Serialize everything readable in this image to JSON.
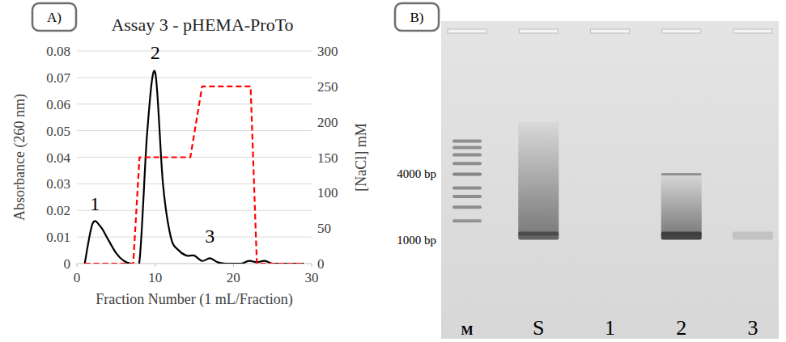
{
  "chart_data": [
    {
      "type": "line",
      "panel": "A)",
      "title": "Assay 3 - pHEMA-ProTo",
      "x_label": "Fraction Number (1 mL/Fraction)",
      "y_label": "Absorbance (260 nm)",
      "y2_label": "[NaCl] mM",
      "xlim": [
        0,
        30
      ],
      "xticks": [
        0,
        10,
        20,
        30
      ],
      "ylim": [
        0,
        0.08
      ],
      "yticks": [
        0,
        0.01,
        0.02,
        0.03,
        0.04,
        0.05,
        0.06,
        0.07,
        0.08
      ],
      "y2lim": [
        0,
        300
      ],
      "y2ticks": [
        0,
        50,
        100,
        150,
        200,
        250,
        300
      ],
      "grid": true,
      "series": [
        {
          "color": "#000000",
          "line_style": "solid",
          "x": [
            1,
            2,
            3,
            4,
            5,
            6,
            7,
            8,
            9,
            10,
            11,
            12,
            13,
            14,
            15,
            16,
            17,
            18,
            19,
            20,
            21,
            22,
            23,
            24,
            25,
            26,
            27,
            28,
            29
          ],
          "values": [
            0,
            0.015,
            0.014,
            0.009,
            0.004,
            0.001,
            0,
            0.001,
            0.05,
            0.072,
            0.03,
            0.01,
            0.005,
            0.003,
            0.003,
            0.001,
            0.002,
            0.0005,
            0,
            0,
            0,
            0.001,
            0.0005,
            0.001,
            0,
            0,
            0,
            0,
            0
          ]
        },
        {
          "color": "#ff0000",
          "line_style": "dashed",
          "axis": "y2",
          "x": [
            1,
            7.2,
            8,
            14.5,
            16,
            22.2,
            23,
            29
          ],
          "values": [
            0,
            0,
            150,
            150,
            250,
            250,
            0,
            0
          ]
        }
      ],
      "annotations": [
        {
          "text": "1",
          "x": 2.3,
          "y": 0.02
        },
        {
          "text": "2",
          "x": 10,
          "y": 0.077
        },
        {
          "text": "3",
          "x": 17,
          "y": 0.008
        }
      ]
    },
    {
      "type": "gel",
      "panel": "B)",
      "categories": [
        "M",
        "S",
        "1",
        "2",
        "3"
      ],
      "log": "y",
      "ylim": [
        190,
        93000
      ],
      "yticks": [
        {
          "value": 4000,
          "label": "4000 bp"
        },
        {
          "value": 1000,
          "label": "1000 bp"
        }
      ],
      "bands": [
        [
          8000,
          7000,
          6000,
          5000,
          4000,
          3000,
          2500,
          2000,
          1500
        ],
        [
          1100
        ],
        [],
        [
          1100,
          4000
        ],
        [
          1100
        ]
      ],
      "band_intensity": [
        [
          0.5,
          0.5,
          0.5,
          0.5,
          0.55,
          0.5,
          0.5,
          0.5,
          0.45
        ],
        [
          0.75
        ],
        [],
        [
          0.95,
          0.45
        ],
        [
          0.15
        ]
      ],
      "smear": [
        null,
        [
          1100,
          12000
        ],
        null,
        [
          1100,
          4000
        ],
        null
      ]
    }
  ]
}
